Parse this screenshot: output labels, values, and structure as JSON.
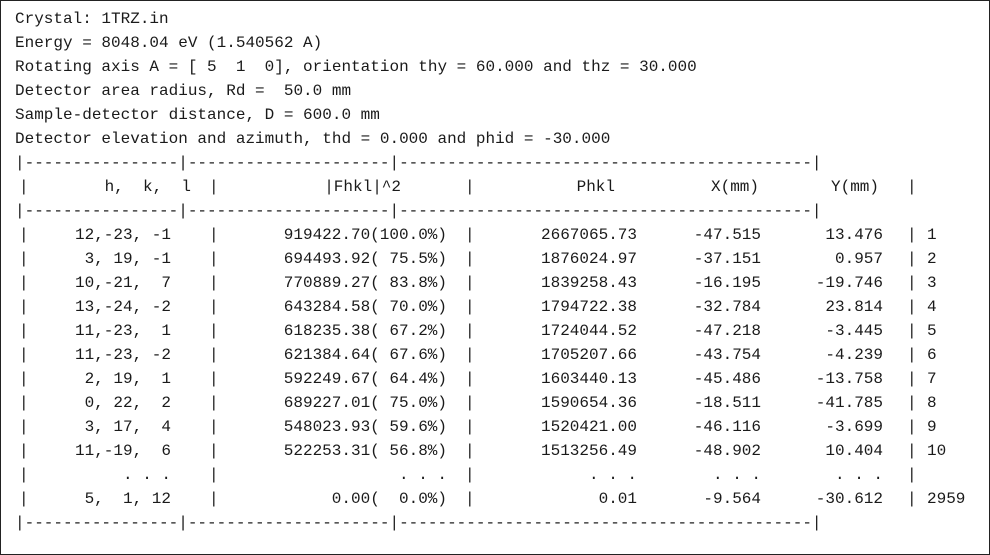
{
  "header_lines": [
    "Crystal: 1TRZ.in",
    "Energy = 8048.04 eV (1.540562 A)",
    "Rotating axis A = [ 5  1  0], orientation thy = 60.000 and thz = 30.000",
    "Detector area radius, Rd =  50.0 mm",
    "Sample-detector distance, D = 600.0 mm",
    "Detector elevation and azimuth, thd = 0.000 and phid = -30.000"
  ],
  "table": {
    "border_line": "|----------------|---------------------|-------------------------------------------|",
    "columns": [
      "h,  k,  l",
      "|Fhkl|^2",
      "Phkl",
      "X(mm)",
      "Y(mm)"
    ],
    "rows": [
      {
        "hkl": "12,-23, -1",
        "fhkl2": "919422.70(100.0%)",
        "phkl": "2667065.73",
        "x": "-47.515",
        "y": "13.476",
        "n": "1"
      },
      {
        "hkl": "3, 19, -1",
        "fhkl2": "694493.92( 75.5%)",
        "phkl": "1876024.97",
        "x": "-37.151",
        "y": "0.957",
        "n": "2"
      },
      {
        "hkl": "10,-21,  7",
        "fhkl2": "770889.27( 83.8%)",
        "phkl": "1839258.43",
        "x": "-16.195",
        "y": "-19.746",
        "n": "3"
      },
      {
        "hkl": "13,-24, -2",
        "fhkl2": "643284.58( 70.0%)",
        "phkl": "1794722.38",
        "x": "-32.784",
        "y": "23.814",
        "n": "4"
      },
      {
        "hkl": "11,-23,  1",
        "fhkl2": "618235.38( 67.2%)",
        "phkl": "1724044.52",
        "x": "-47.218",
        "y": "-3.445",
        "n": "5"
      },
      {
        "hkl": "11,-23, -2",
        "fhkl2": "621384.64( 67.6%)",
        "phkl": "1705207.66",
        "x": "-43.754",
        "y": "-4.239",
        "n": "6"
      },
      {
        "hkl": "2, 19,  1",
        "fhkl2": "592249.67( 64.4%)",
        "phkl": "1603440.13",
        "x": "-45.486",
        "y": "-13.758",
        "n": "7"
      },
      {
        "hkl": "0, 22,  2",
        "fhkl2": "689227.01( 75.0%)",
        "phkl": "1590654.36",
        "x": "-18.511",
        "y": "-41.785",
        "n": "8"
      },
      {
        "hkl": "3, 17,  4",
        "fhkl2": "548023.93( 59.6%)",
        "phkl": "1520421.00",
        "x": "-46.116",
        "y": "-3.699",
        "n": "9"
      },
      {
        "hkl": "11,-19,  6",
        "fhkl2": "522253.31( 56.8%)",
        "phkl": "1513256.49",
        "x": "-48.902",
        "y": "10.404",
        "n": "10"
      },
      {
        "hkl": ". . .",
        "fhkl2": ". . .",
        "phkl": ". . .",
        "x": ". . .",
        "y": ". . .",
        "n": ""
      },
      {
        "hkl": "5,  1, 12",
        "fhkl2": "0.00(  0.0%)",
        "phkl": "0.01",
        "x": "-9.564",
        "y": "-30.612",
        "n": "2959"
      }
    ]
  }
}
